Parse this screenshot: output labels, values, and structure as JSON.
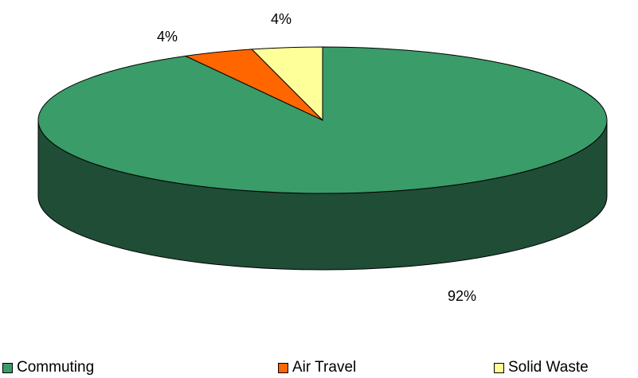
{
  "chart_data": {
    "type": "pie",
    "style": "3d",
    "title": "",
    "categories": [
      "Commuting",
      "Air Travel",
      "Solid Waste"
    ],
    "values": [
      92,
      4,
      4
    ],
    "data_labels": [
      "92%",
      "4%",
      "4%"
    ],
    "colors": [
      "#3a9c68",
      "#ff6600",
      "#ffff99"
    ],
    "side_colors": [
      "#1f4d36",
      "#7a3300",
      "#7a7a3a"
    ],
    "legend": {
      "position": "bottom",
      "entries": [
        "Commuting",
        "Air Travel",
        "Solid Waste"
      ]
    }
  }
}
